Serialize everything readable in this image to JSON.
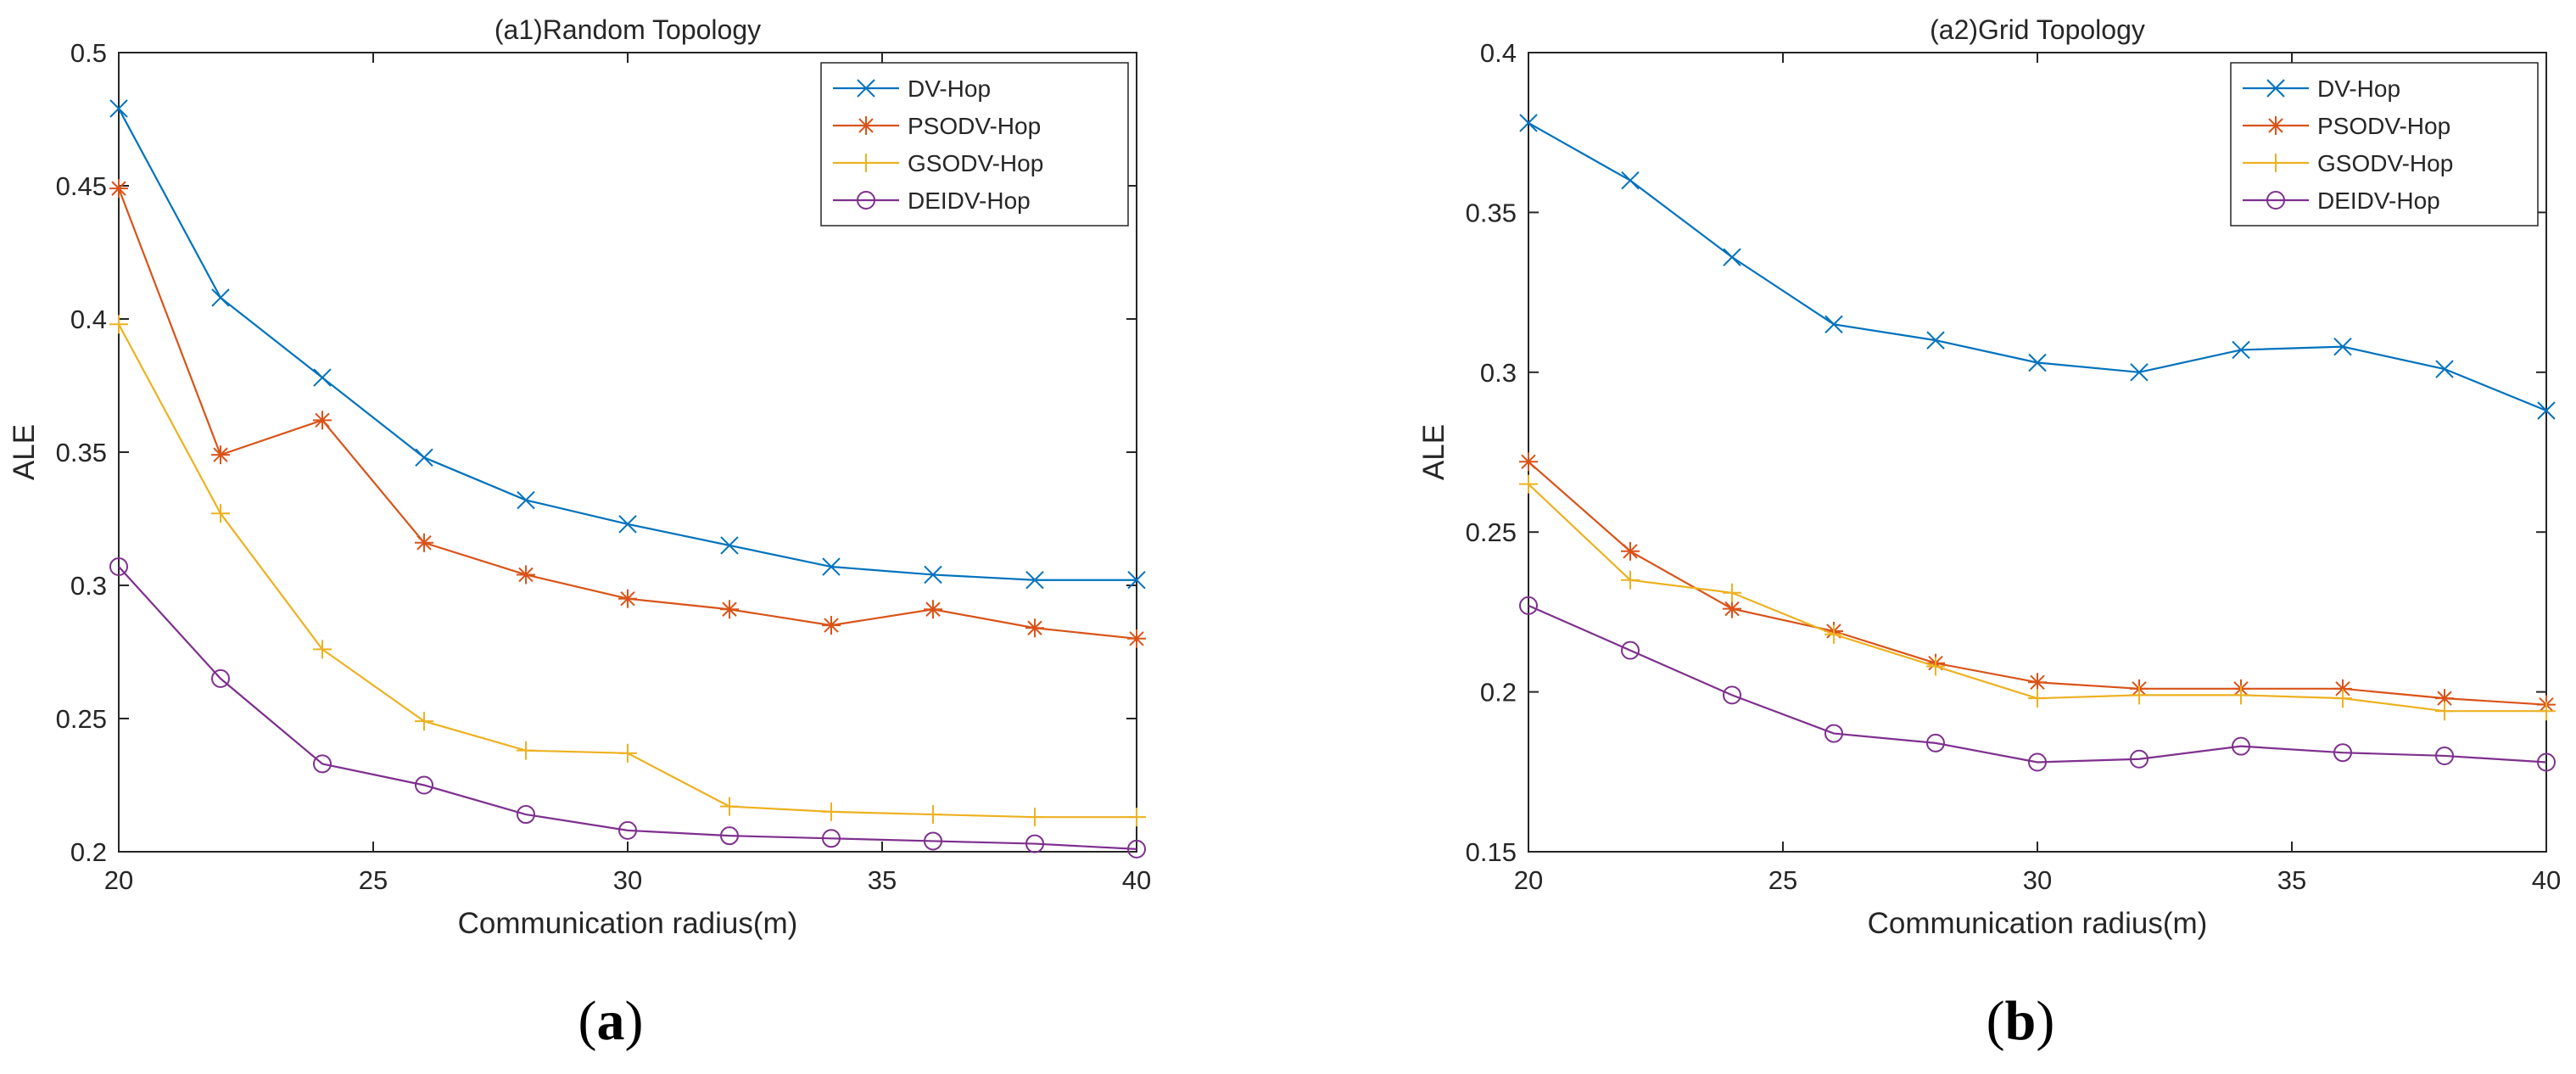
{
  "colors": {
    "DV-Hop": "#0072BD",
    "PSODV-Hop": "#D95319",
    "GSODV-Hop": "#EDB120",
    "DEIDV-Hop": "#7E2F8E"
  },
  "chart_data": [
    {
      "type": "line",
      "title": "(a1)Random Topology",
      "xlabel": "Communication radius(m)",
      "ylabel": "ALE",
      "xlim": [
        20,
        40
      ],
      "ylim": [
        0.2,
        0.5
      ],
      "xticks": [
        20,
        25,
        30,
        35,
        40
      ],
      "yticks": [
        0.2,
        0.25,
        0.3,
        0.35,
        0.4,
        0.45,
        0.5
      ],
      "xtick_labels": [
        "20",
        "25",
        "30",
        "35",
        "40"
      ],
      "ytick_labels": [
        "0.2",
        "0.25",
        "0.3",
        "0.35",
        "0.4",
        "0.45",
        "0.5"
      ],
      "legend_position": "top-right",
      "caption": "a",
      "x": [
        20,
        22,
        24,
        26,
        28,
        30,
        32,
        34,
        36,
        38,
        40
      ],
      "series": [
        {
          "name": "DV-Hop",
          "marker": "x",
          "values": [
            0.479,
            0.408,
            0.378,
            0.348,
            0.332,
            0.323,
            0.315,
            0.307,
            0.304,
            0.302,
            0.302
          ]
        },
        {
          "name": "PSODV-Hop",
          "marker": "asterisk",
          "values": [
            0.449,
            0.349,
            0.362,
            0.316,
            0.304,
            0.295,
            0.291,
            0.285,
            0.291,
            0.284,
            0.28
          ]
        },
        {
          "name": "GSODV-Hop",
          "marker": "plus",
          "values": [
            0.398,
            0.327,
            0.276,
            0.249,
            0.238,
            0.237,
            0.217,
            0.215,
            0.214,
            0.213,
            0.213
          ]
        },
        {
          "name": "DEIDV-Hop",
          "marker": "circle",
          "values": [
            0.307,
            0.265,
            0.233,
            0.225,
            0.214,
            0.208,
            0.206,
            0.205,
            0.204,
            0.203,
            0.201
          ]
        }
      ]
    },
    {
      "type": "line",
      "title": "(a2)Grid Topology",
      "xlabel": "Communication radius(m)",
      "ylabel": "ALE",
      "xlim": [
        20,
        40
      ],
      "ylim": [
        0.15,
        0.4
      ],
      "xticks": [
        20,
        25,
        30,
        35,
        40
      ],
      "yticks": [
        0.15,
        0.2,
        0.25,
        0.3,
        0.35,
        0.4
      ],
      "xtick_labels": [
        "20",
        "25",
        "30",
        "35",
        "40"
      ],
      "ytick_labels": [
        "0.15",
        "0.2",
        "0.25",
        "0.3",
        "0.35",
        "0.4"
      ],
      "legend_position": "top-right",
      "caption": "b",
      "x": [
        20,
        22,
        24,
        26,
        28,
        30,
        32,
        34,
        36,
        38,
        40
      ],
      "series": [
        {
          "name": "DV-Hop",
          "marker": "x",
          "values": [
            0.378,
            0.36,
            0.336,
            0.315,
            0.31,
            0.303,
            0.3,
            0.307,
            0.308,
            0.301,
            0.288
          ]
        },
        {
          "name": "PSODV-Hop",
          "marker": "asterisk",
          "values": [
            0.272,
            0.244,
            0.226,
            0.219,
            0.209,
            0.203,
            0.201,
            0.201,
            0.201,
            0.198,
            0.196
          ]
        },
        {
          "name": "GSODV-Hop",
          "marker": "plus",
          "values": [
            0.265,
            0.235,
            0.231,
            0.218,
            0.208,
            0.198,
            0.199,
            0.199,
            0.198,
            0.194,
            0.194
          ]
        },
        {
          "name": "DEIDV-Hop",
          "marker": "circle",
          "values": [
            0.227,
            0.213,
            0.199,
            0.187,
            0.184,
            0.178,
            0.179,
            0.183,
            0.181,
            0.18,
            0.178
          ]
        }
      ]
    }
  ]
}
